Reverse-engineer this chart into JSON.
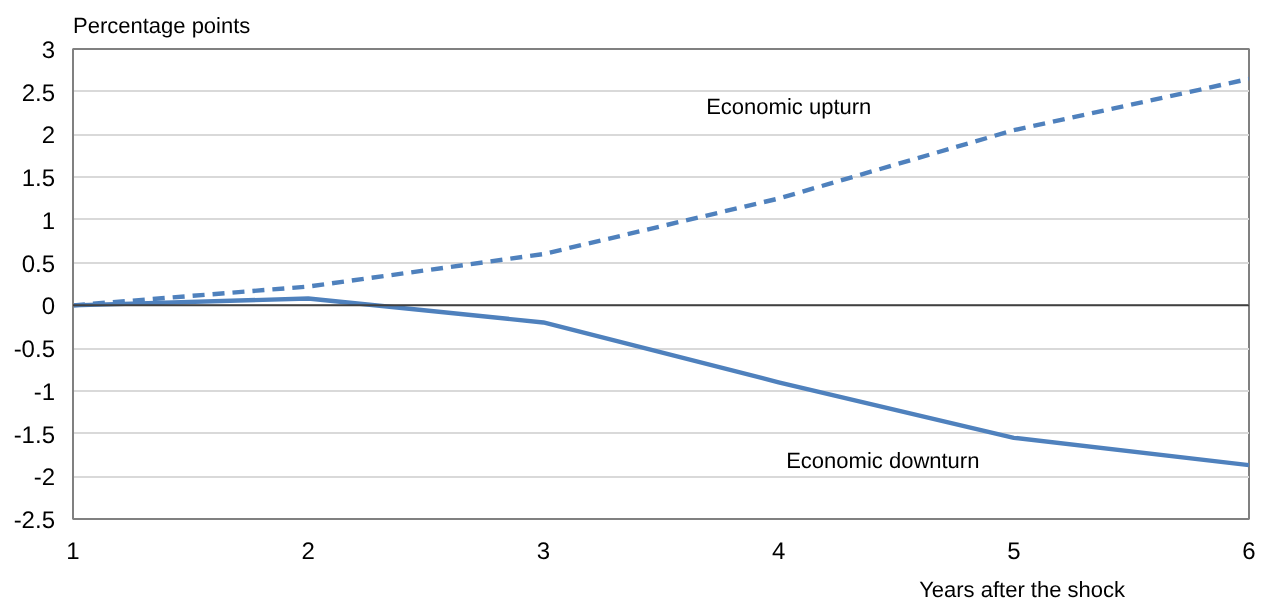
{
  "chart_data": {
    "type": "line",
    "ylabel": "Percentage points",
    "xlabel": "Years after the shock",
    "x": [
      1,
      2,
      3,
      4,
      5,
      6
    ],
    "series": [
      {
        "name": "Economic upturn",
        "color": "#4f81bd",
        "line_style": "dashed",
        "values": [
          0,
          0.22,
          0.6,
          1.25,
          2.05,
          2.65
        ]
      },
      {
        "name": "Economic downturn",
        "color": "#4f81bd",
        "line_style": "solid",
        "values": [
          0,
          0.08,
          -0.2,
          -0.9,
          -1.55,
          -1.87
        ]
      }
    ],
    "xlim": [
      1,
      6
    ],
    "xticks": [
      1,
      2,
      3,
      4,
      5,
      6
    ],
    "ylim": [
      -2.5,
      3
    ],
    "yticks": [
      -2.5,
      -2,
      -1.5,
      -1,
      -0.5,
      0,
      0.5,
      1,
      1.5,
      2,
      2.5,
      3
    ],
    "ref_lines": [
      {
        "axis": "y",
        "value": 0,
        "color": "#404040"
      }
    ],
    "grid": "y",
    "marker": "none"
  }
}
